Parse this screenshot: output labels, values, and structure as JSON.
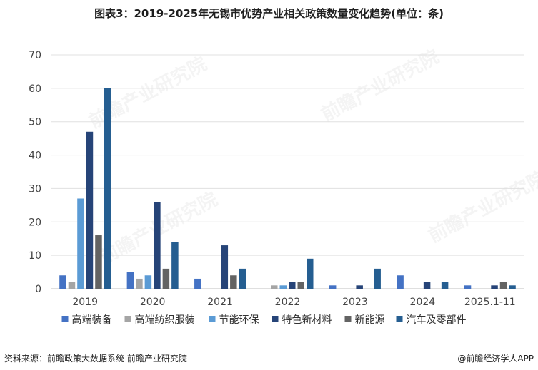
{
  "title": "图表3：2019-2025年无锡市优势产业相关政策数量变化趋势(单位：条)",
  "footer": {
    "source": "资料来源：前瞻政策大数据系统 前瞻产业研究院",
    "brand": "@前瞻经济学人APP"
  },
  "watermark": "前瞻产业研究院",
  "chart_data": {
    "type": "bar",
    "categories": [
      "2019",
      "2020",
      "2021",
      "2022",
      "2023",
      "2024",
      "2025.1-11"
    ],
    "ylim": [
      0,
      70
    ],
    "yticks": [
      0,
      10,
      20,
      30,
      40,
      50,
      60,
      70
    ],
    "grid": true,
    "legend_position": "bottom",
    "series": [
      {
        "name": "高端装备",
        "color": "#4472c4",
        "values": [
          4,
          5,
          3,
          0,
          1,
          4,
          1
        ]
      },
      {
        "name": "高端纺织服装",
        "color": "#a5a5a5",
        "values": [
          2,
          3,
          0,
          1,
          0,
          0,
          0
        ]
      },
      {
        "name": "节能环保",
        "color": "#5b9bd5",
        "values": [
          27,
          4,
          0,
          1,
          0,
          0,
          0
        ]
      },
      {
        "name": "特色新材料",
        "color": "#264478",
        "values": [
          47,
          26,
          13,
          2,
          1,
          2,
          1
        ]
      },
      {
        "name": "新能源",
        "color": "#636363",
        "values": [
          16,
          6,
          4,
          2,
          0,
          0,
          2
        ]
      },
      {
        "name": "汽车及零部件",
        "color": "#255e91",
        "values": [
          60,
          14,
          6,
          9,
          6,
          2,
          1
        ]
      }
    ]
  }
}
